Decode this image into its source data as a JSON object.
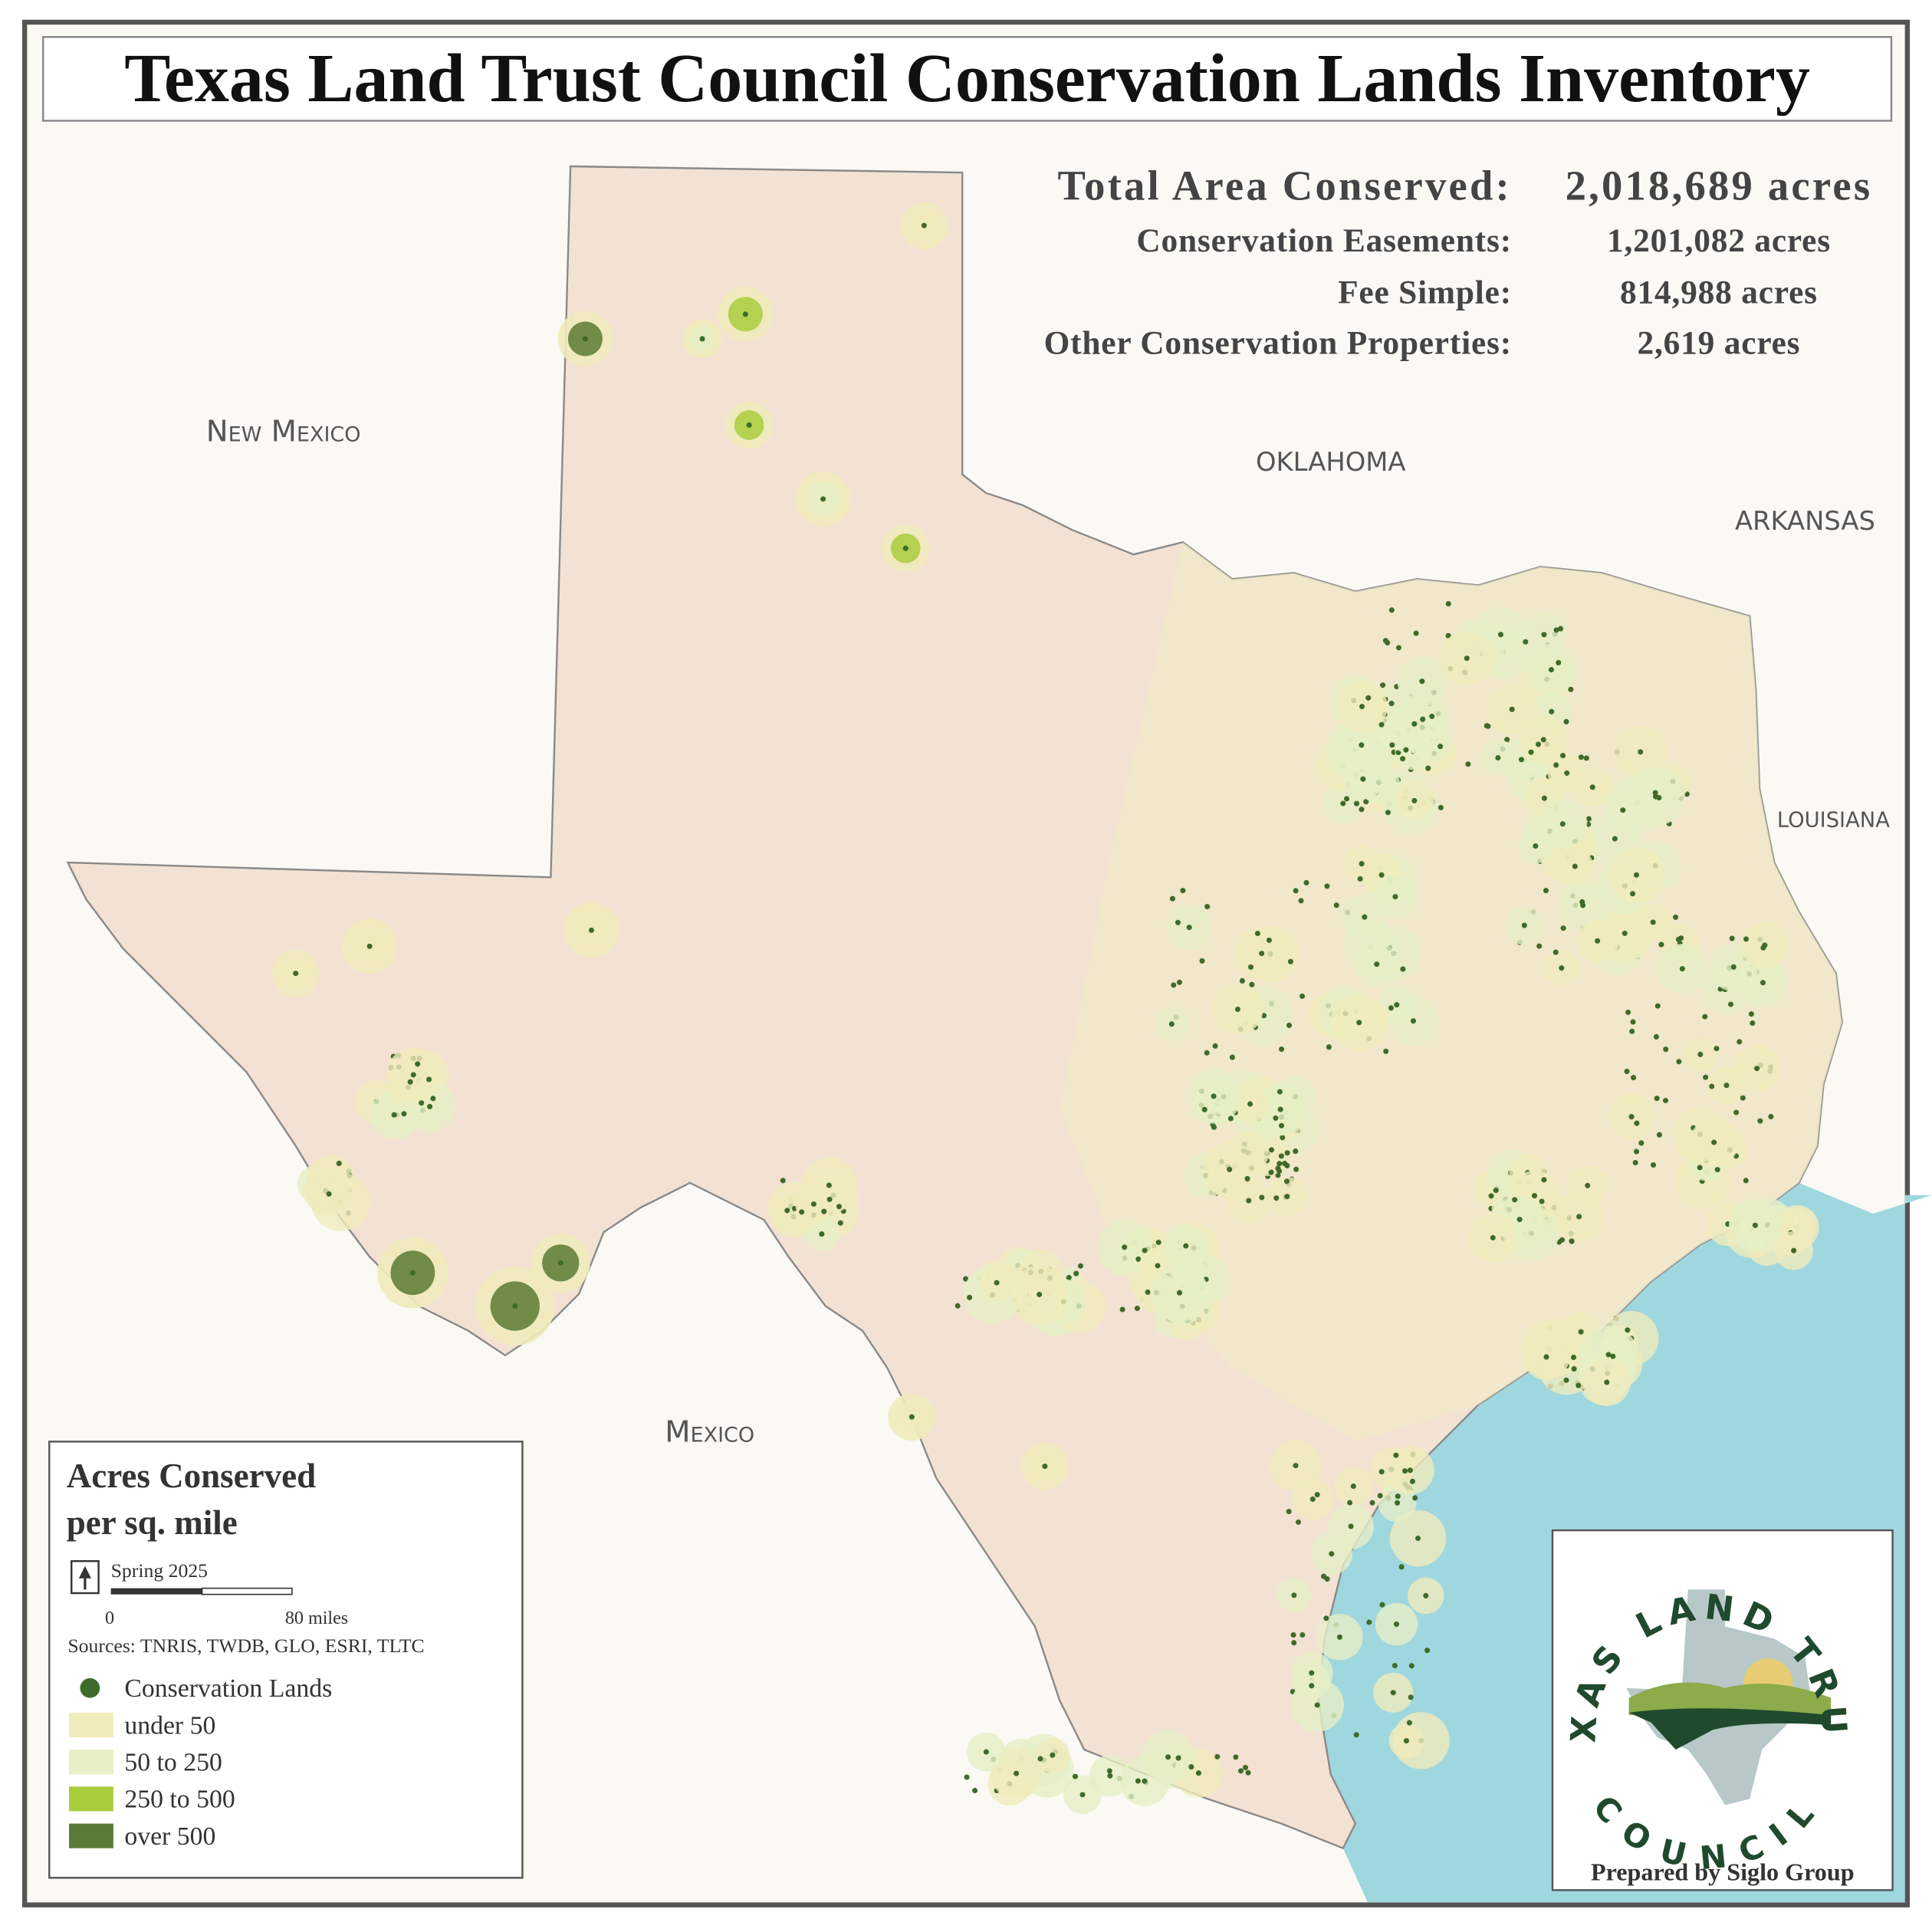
{
  "header": {
    "title": "Texas Land Trust Council Conservation Lands Inventory"
  },
  "summary": {
    "rows": [
      {
        "label": "Total Area Conserved:",
        "value": "2,018,689 acres"
      },
      {
        "label": "Conservation Easements:",
        "value": "1,201,082 acres"
      },
      {
        "label": "Fee Simple:",
        "value": "814,988 acres"
      },
      {
        "label": "Other Conservation Properties:",
        "value": "2,619 acres"
      }
    ]
  },
  "map_labels": {
    "new_mexico": "New Mexico",
    "oklahoma": "OKLAHOMA",
    "arkansas": "ARKANSAS",
    "louisiana": "LOUISIANA",
    "mexico": "Mexico"
  },
  "legend": {
    "title": [
      "Acres Conserved",
      "per sq. mile"
    ],
    "date": "Spring 2025",
    "scale": [
      "0",
      "80 miles"
    ],
    "sources": "Sources: TNRIS, TWDB, GLO, ESRI, TLTC",
    "items": [
      {
        "label": "Conservation Lands",
        "color": "#3f6b2a"
      },
      {
        "label": "under 50",
        "color": "#f0ebbb"
      },
      {
        "label": "50 to 250",
        "color": "#e6efc6"
      },
      {
        "label": "250 to 500",
        "color": "#a9cc3c"
      },
      {
        "label": "over 500",
        "color": "#5a7a35"
      }
    ]
  },
  "logo": {
    "top": "TEXAS LAND TRUST",
    "bottom": "COUNCIL",
    "credit": "Prepared by Siglo Group"
  }
}
